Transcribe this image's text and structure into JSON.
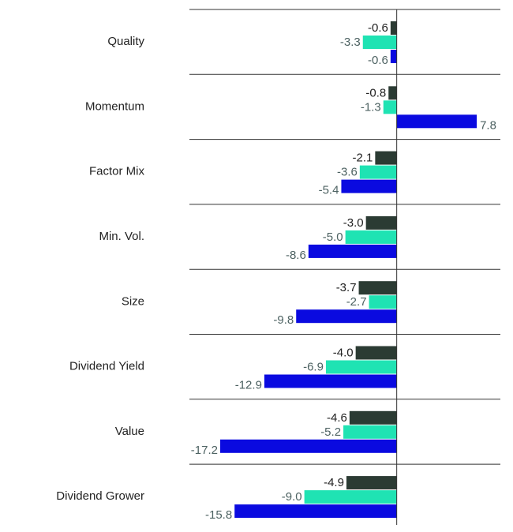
{
  "chart_data": {
    "type": "hbar",
    "categories": [
      "Quality",
      "Momentum",
      "Factor Mix",
      "Min. Vol.",
      "Size",
      "Dividend Yield",
      "Value",
      "Dividend Grower"
    ],
    "series": [
      {
        "color": "#2b3b33",
        "values": [
          -0.6,
          -0.8,
          -2.1,
          -3,
          -3.7,
          -4,
          -4.6,
          -4.9
        ],
        "value_labels": [
          "-0.6",
          "-0.8",
          "-2.1",
          "-3.0",
          "-3.7",
          "-4.0",
          "-4.6",
          "-4.9"
        ]
      },
      {
        "color": "#1fe3b3",
        "values": [
          -3.3,
          -1.3,
          -3.6,
          -5,
          -2.7,
          -6.9,
          -5.2,
          -9
        ],
        "value_labels": [
          "-3.3",
          "-1.3",
          "-3.6",
          "-5.0",
          "-2.7",
          "-6.9",
          "-5.2",
          "-9.0"
        ]
      },
      {
        "color": "#0a0ae0",
        "values": [
          -0.6,
          7.8,
          -5.4,
          -8.6,
          -9.8,
          -12.9,
          -17.2,
          -15.8
        ],
        "value_labels": [
          "-0.6",
          "7.8",
          "-5.4",
          "-8.6",
          "-9.8",
          "-12.9",
          "-17.2",
          "-15.8"
        ]
      }
    ],
    "xlim": [
      -20.2,
      10.1
    ]
  }
}
